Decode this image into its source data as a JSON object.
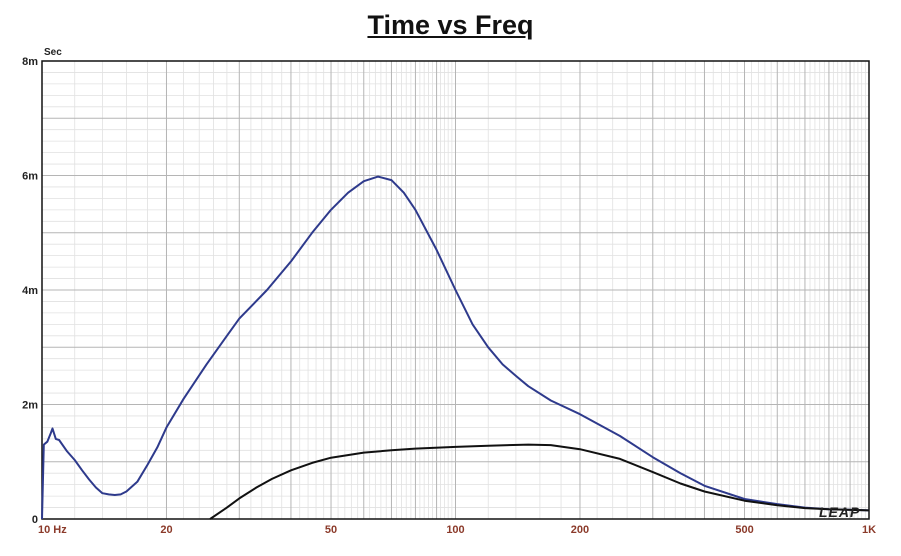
{
  "chart_data": {
    "type": "line",
    "title": "Time vs Freq",
    "y_unit_label": "Sec",
    "x_scale": "log",
    "xlim": [
      10,
      1000
    ],
    "ylim": [
      0,
      0.008
    ],
    "grid": true,
    "x_tick_labels": [
      {
        "value": 10,
        "label": "10  Hz"
      },
      {
        "value": 20,
        "label": "20"
      },
      {
        "value": 50,
        "label": "50"
      },
      {
        "value": 100,
        "label": "100"
      },
      {
        "value": 200,
        "label": "200"
      },
      {
        "value": 500,
        "label": "500"
      },
      {
        "value": 1000,
        "label": "1K"
      }
    ],
    "y_tick_labels": [
      {
        "value": 0,
        "label": "0"
      },
      {
        "value": 0.002,
        "label": "2m"
      },
      {
        "value": 0.004,
        "label": "4m"
      },
      {
        "value": 0.006,
        "label": "6m"
      },
      {
        "value": 0.008,
        "label": "8m"
      }
    ],
    "series": [
      {
        "color": "#2e3a8c",
        "points": [
          [
            10,
            0.0
          ],
          [
            10.1,
            0.0013
          ],
          [
            10.3,
            0.00135
          ],
          [
            10.5,
            0.0015
          ],
          [
            10.6,
            0.00158
          ],
          [
            10.8,
            0.0014
          ],
          [
            11,
            0.00138
          ],
          [
            11.5,
            0.00118
          ],
          [
            12,
            0.00103
          ],
          [
            12.5,
            0.00085
          ],
          [
            13,
            0.00069
          ],
          [
            13.5,
            0.00055
          ],
          [
            14,
            0.00045
          ],
          [
            14.5,
            0.00043
          ],
          [
            15,
            0.00042
          ],
          [
            15.5,
            0.00043
          ],
          [
            16,
            0.00048
          ],
          [
            17,
            0.00065
          ],
          [
            18,
            0.00095
          ],
          [
            19,
            0.00125
          ],
          [
            20,
            0.0016
          ],
          [
            22,
            0.0021
          ],
          [
            25,
            0.0027
          ],
          [
            28,
            0.0032
          ],
          [
            30,
            0.0035
          ],
          [
            35,
            0.004
          ],
          [
            40,
            0.0045
          ],
          [
            45,
            0.005
          ],
          [
            50,
            0.0054
          ],
          [
            55,
            0.0057
          ],
          [
            60,
            0.0059
          ],
          [
            65,
            0.00598
          ],
          [
            70,
            0.00592
          ],
          [
            75,
            0.0057
          ],
          [
            80,
            0.0054
          ],
          [
            90,
            0.0047
          ],
          [
            100,
            0.004
          ],
          [
            110,
            0.0034
          ],
          [
            120,
            0.003
          ],
          [
            130,
            0.0027
          ],
          [
            140,
            0.0025
          ],
          [
            150,
            0.00232
          ],
          [
            170,
            0.00207
          ],
          [
            200,
            0.00183
          ],
          [
            250,
            0.00145
          ],
          [
            300,
            0.00108
          ],
          [
            350,
            0.0008
          ],
          [
            400,
            0.00058
          ],
          [
            500,
            0.00035
          ],
          [
            600,
            0.00026
          ],
          [
            700,
            0.0002
          ],
          [
            800,
            0.00017
          ],
          [
            900,
            0.00016
          ],
          [
            1000,
            0.00015
          ]
        ]
      },
      {
        "color": "#111111",
        "points": [
          [
            25.5,
            0.0
          ],
          [
            28,
            0.0002
          ],
          [
            30,
            0.00036
          ],
          [
            33,
            0.00055
          ],
          [
            36,
            0.0007
          ],
          [
            40,
            0.00085
          ],
          [
            45,
            0.00098
          ],
          [
            50,
            0.00107
          ],
          [
            60,
            0.00116
          ],
          [
            70,
            0.0012
          ],
          [
            80,
            0.00123
          ],
          [
            100,
            0.00126
          ],
          [
            120,
            0.00128
          ],
          [
            150,
            0.0013
          ],
          [
            170,
            0.00129
          ],
          [
            200,
            0.00122
          ],
          [
            250,
            0.00105
          ],
          [
            300,
            0.00082
          ],
          [
            350,
            0.00062
          ],
          [
            400,
            0.00048
          ],
          [
            500,
            0.00032
          ],
          [
            600,
            0.00024
          ],
          [
            700,
            0.00019
          ],
          [
            800,
            0.00017
          ],
          [
            1000,
            0.00015
          ]
        ]
      }
    ]
  },
  "logo_text": "LEAP"
}
